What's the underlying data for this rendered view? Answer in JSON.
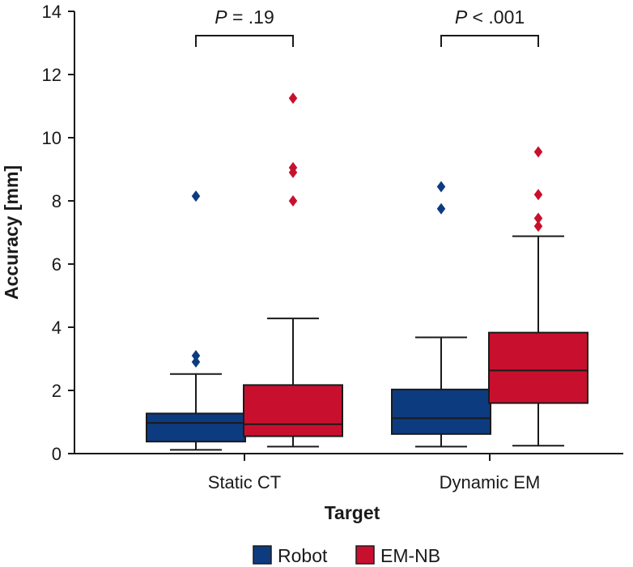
{
  "chart_data": {
    "type": "box",
    "title": "",
    "xlabel": "Target",
    "ylabel": "Accuracy [mm]",
    "ylim": [
      0,
      14
    ],
    "yticks": [
      0,
      2,
      4,
      6,
      8,
      10,
      12,
      14
    ],
    "grid": false,
    "legend_position": "bottom-center",
    "categories": [
      "Static CT",
      "Dynamic EM"
    ],
    "series": [
      {
        "name": "Robot",
        "color": "#0d3b80",
        "boxes": [
          {
            "whisker_low": 0.12,
            "q1": 0.38,
            "median": 0.97,
            "q3": 1.27,
            "whisker_high": 2.52,
            "outliers": [
              2.9,
              3.1,
              8.15
            ]
          },
          {
            "whisker_low": 0.22,
            "q1": 0.62,
            "median": 1.12,
            "q3": 2.03,
            "whisker_high": 3.68,
            "outliers": [
              7.75,
              8.45
            ]
          }
        ]
      },
      {
        "name": "EM-NB",
        "color": "#c8102e",
        "boxes": [
          {
            "whisker_low": 0.22,
            "q1": 0.55,
            "median": 0.93,
            "q3": 2.17,
            "whisker_high": 4.28,
            "outliers": [
              8.0,
              8.9,
              9.05,
              11.25
            ]
          },
          {
            "whisker_low": 0.25,
            "q1": 1.6,
            "median": 2.63,
            "q3": 3.83,
            "whisker_high": 6.88,
            "outliers": [
              7.2,
              7.45,
              8.2,
              9.55
            ]
          }
        ]
      }
    ],
    "annotations": [
      {
        "text": "P = .19",
        "p_italic": "P",
        "rest": " = .19",
        "category": "Static CT"
      },
      {
        "text": "P < .001",
        "p_italic": "P",
        "rest": " < .001",
        "category": "Dynamic EM"
      }
    ]
  }
}
